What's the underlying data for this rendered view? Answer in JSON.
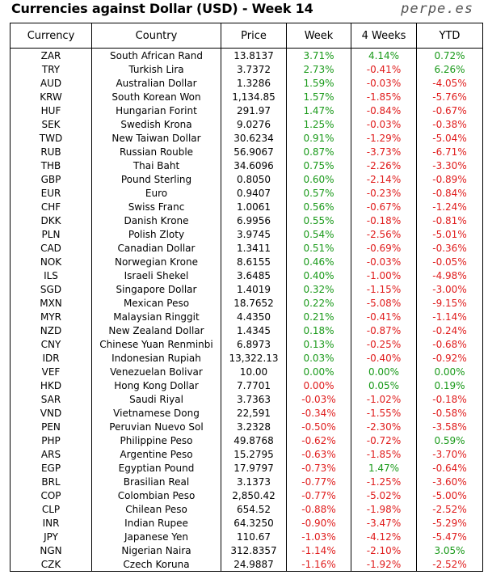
{
  "title": "Currencies against Dollar (USD) - Week 14",
  "brand": "perpe.es",
  "colors": {
    "positive": "#1a9a1a",
    "negative": "#e01c1c"
  },
  "chart_data": {
    "type": "table",
    "columns": [
      "Currency",
      "Country",
      "Price",
      "Week",
      "4 Weeks",
      "YTD"
    ],
    "rows": [
      [
        "ZAR",
        "South African Rand",
        "13.8137",
        "3.71%",
        "4.14%",
        "0.72%"
      ],
      [
        "TRY",
        "Turkish Lira",
        "3.7372",
        "2.73%",
        "-0.41%",
        "6.26%"
      ],
      [
        "AUD",
        "Australian Dollar",
        "1.3286",
        "1.59%",
        "-0.03%",
        "-4.05%"
      ],
      [
        "KRW",
        "South Korean Won",
        "1,134.85",
        "1.57%",
        "-1.85%",
        "-5.76%"
      ],
      [
        "HUF",
        "Hungarian Forint",
        "291.97",
        "1.47%",
        "-0.84%",
        "-0.67%"
      ],
      [
        "SEK",
        "Swedish Krona",
        "9.0276",
        "1.25%",
        "-0.03%",
        "-0.38%"
      ],
      [
        "TWD",
        "New Taiwan Dollar",
        "30.6234",
        "0.91%",
        "-1.29%",
        "-5.04%"
      ],
      [
        "RUB",
        "Russian Rouble",
        "56.9067",
        "0.87%",
        "-3.73%",
        "-6.71%"
      ],
      [
        "THB",
        "Thai Baht",
        "34.6096",
        "0.75%",
        "-2.26%",
        "-3.30%"
      ],
      [
        "GBP",
        "Pound Sterling",
        "0.8050",
        "0.60%",
        "-2.14%",
        "-0.89%"
      ],
      [
        "EUR",
        "Euro",
        "0.9407",
        "0.57%",
        "-0.23%",
        "-0.84%"
      ],
      [
        "CHF",
        "Swiss Franc",
        "1.0061",
        "0.56%",
        "-0.67%",
        "-1.24%"
      ],
      [
        "DKK",
        "Danish Krone",
        "6.9956",
        "0.55%",
        "-0.18%",
        "-0.81%"
      ],
      [
        "PLN",
        "Polish Zloty",
        "3.9745",
        "0.54%",
        "-2.56%",
        "-5.01%"
      ],
      [
        "CAD",
        "Canadian Dollar",
        "1.3411",
        "0.51%",
        "-0.69%",
        "-0.36%"
      ],
      [
        "NOK",
        "Norwegian Krone",
        "8.6155",
        "0.46%",
        "-0.03%",
        "-0.05%"
      ],
      [
        "ILS",
        "Israeli Shekel",
        "3.6485",
        "0.40%",
        "-1.00%",
        "-4.98%"
      ],
      [
        "SGD",
        "Singapore Dollar",
        "1.4019",
        "0.32%",
        "-1.15%",
        "-3.00%"
      ],
      [
        "MXN",
        "Mexican Peso",
        "18.7652",
        "0.22%",
        "-5.08%",
        "-9.15%"
      ],
      [
        "MYR",
        "Malaysian Ringgit",
        "4.4350",
        "0.21%",
        "-0.41%",
        "-1.14%"
      ],
      [
        "NZD",
        "New Zealand Dollar",
        "1.4345",
        "0.18%",
        "-0.87%",
        "-0.24%"
      ],
      [
        "CNY",
        "Chinese Yuan Renminbi",
        "6.8973",
        "0.13%",
        "-0.25%",
        "-0.68%"
      ],
      [
        "IDR",
        "Indonesian Rupiah",
        "13,322.13",
        "0.03%",
        "-0.40%",
        "-0.92%"
      ],
      [
        "VEF",
        "Venezuelan Bolivar",
        "10.00",
        "0.00%",
        "0.00%",
        "0.00%"
      ],
      [
        "HKD",
        "Hong Kong Dollar",
        "7.7701",
        "0.00%",
        "0.05%",
        "0.19%"
      ],
      [
        "SAR",
        "Saudi Riyal",
        "3.7363",
        "-0.03%",
        "-1.02%",
        "-0.18%"
      ],
      [
        "VND",
        "Vietnamese Dong",
        "22,591",
        "-0.34%",
        "-1.55%",
        "-0.58%"
      ],
      [
        "PEN",
        "Peruvian Nuevo Sol",
        "3.2328",
        "-0.50%",
        "-2.30%",
        "-3.58%"
      ],
      [
        "PHP",
        "Philippine Peso",
        "49.8768",
        "-0.62%",
        "-0.72%",
        "0.59%"
      ],
      [
        "ARS",
        "Argentine Peso",
        "15.2795",
        "-0.63%",
        "-1.85%",
        "-3.70%"
      ],
      [
        "EGP",
        "Egyptian Pound",
        "17.9797",
        "-0.73%",
        "1.47%",
        "-0.64%"
      ],
      [
        "BRL",
        "Brasilian Real",
        "3.1373",
        "-0.77%",
        "-1.25%",
        "-3.60%"
      ],
      [
        "COP",
        "Colombian Peso",
        "2,850.42",
        "-0.77%",
        "-5.02%",
        "-5.00%"
      ],
      [
        "CLP",
        "Chilean Peso",
        "654.52",
        "-0.88%",
        "-1.98%",
        "-2.52%"
      ],
      [
        "INR",
        "Indian Rupee",
        "64.3250",
        "-0.90%",
        "-3.47%",
        "-5.29%"
      ],
      [
        "JPY",
        "Japanese Yen",
        "110.67",
        "-1.03%",
        "-4.12%",
        "-5.47%"
      ],
      [
        "NGN",
        "Nigerian Naira",
        "312.8357",
        "-1.14%",
        "-2.10%",
        "3.05%"
      ],
      [
        "CZK",
        "Czech Koruna",
        "24.9887",
        "-1.16%",
        "-1.92%",
        "-2.52%"
      ]
    ],
    "red_zero_cells": [
      [
        24,
        3
      ]
    ]
  }
}
